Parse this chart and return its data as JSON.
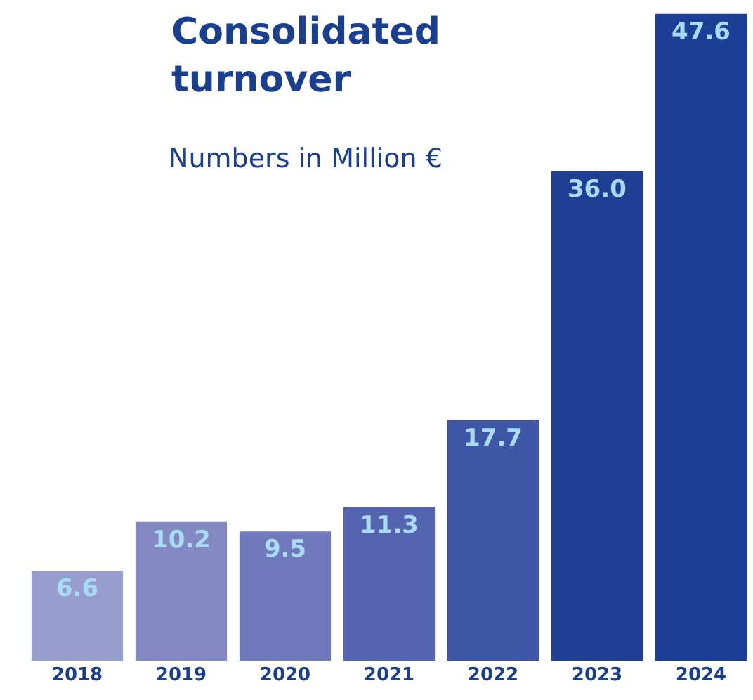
{
  "chart_data": {
    "type": "bar",
    "title": "Consolidated\nturnover",
    "subtitle": "Numbers in Million €",
    "categories": [
      "2018",
      "2019",
      "2020",
      "2021",
      "2022",
      "2023",
      "2024"
    ],
    "values": [
      6.6,
      10.2,
      9.5,
      11.3,
      17.7,
      36.0,
      47.6
    ],
    "value_labels": [
      "6.6",
      "10.2",
      "9.5",
      "11.3",
      "17.7",
      "36.0",
      "47.6"
    ],
    "colors": [
      "#979dcf",
      "#8489c4",
      "#6f79bb",
      "#5464b0",
      "#3f55a6",
      "#1f3f95",
      "#1b3f94"
    ],
    "ylim": [
      0,
      48
    ]
  }
}
